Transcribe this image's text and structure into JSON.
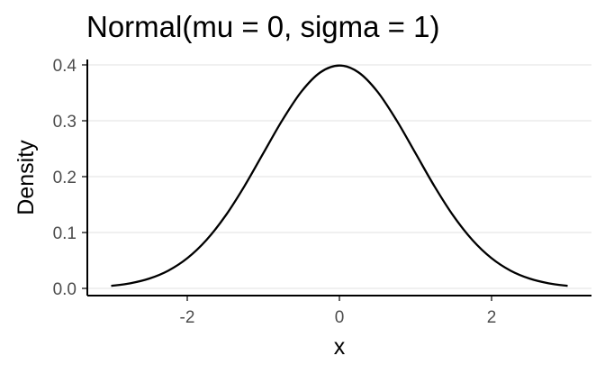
{
  "chart_data": {
    "type": "line",
    "title": "Normal(mu = 0, sigma = 1)",
    "xlabel": "x",
    "ylabel": "Density",
    "xlim": [
      -3.3,
      3.3
    ],
    "ylim": [
      0,
      0.4
    ],
    "x_ticks": [
      -2,
      0,
      2
    ],
    "x_tick_labels": [
      "-2",
      "0",
      "2"
    ],
    "y_ticks": [
      0,
      0.1,
      0.2,
      0.3,
      0.4
    ],
    "y_tick_labels": [
      "0.0",
      "0.1",
      "0.2",
      "0.3",
      "0.4"
    ],
    "grid": "horizontal",
    "series": [
      {
        "color": "#000000",
        "x": [
          -3,
          -2.75,
          -2.5,
          -2.25,
          -2,
          -1.75,
          -1.5,
          -1.25,
          -1,
          -0.75,
          -0.5,
          -0.25,
          0,
          0.25,
          0.5,
          0.75,
          1,
          1.25,
          1.5,
          1.75,
          2,
          2.25,
          2.5,
          2.75,
          3
        ],
        "y": [
          0.0044,
          0.0091,
          0.0175,
          0.0317,
          0.054,
          0.0863,
          0.1295,
          0.1826,
          0.242,
          0.3011,
          0.3521,
          0.3867,
          0.3989,
          0.3867,
          0.3521,
          0.3011,
          0.242,
          0.1826,
          0.1295,
          0.0863,
          0.054,
          0.0317,
          0.0175,
          0.0091,
          0.0044
        ]
      }
    ]
  }
}
